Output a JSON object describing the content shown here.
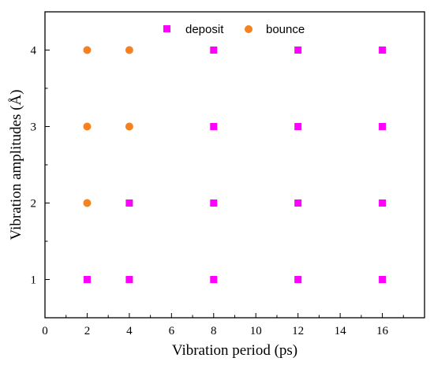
{
  "chart_data": {
    "type": "scatter",
    "xlabel": "Vibration period (ps)",
    "ylabel": "Vibration amplitudes (Å)",
    "xlim": [
      0,
      18
    ],
    "ylim": [
      0.5,
      4.5
    ],
    "xticks": [
      0,
      2,
      4,
      6,
      8,
      10,
      12,
      14,
      16
    ],
    "yticks": [
      1,
      2,
      3,
      4
    ],
    "grid": false,
    "legend_position": "top-center",
    "series": [
      {
        "name": "deposit",
        "marker": "square",
        "color": "#ff00ff",
        "points": [
          [
            2,
            1
          ],
          [
            4,
            1
          ],
          [
            8,
            1
          ],
          [
            12,
            1
          ],
          [
            16,
            1
          ],
          [
            4,
            2
          ],
          [
            8,
            2
          ],
          [
            12,
            2
          ],
          [
            16,
            2
          ],
          [
            8,
            3
          ],
          [
            12,
            3
          ],
          [
            16,
            3
          ],
          [
            8,
            4
          ],
          [
            12,
            4
          ],
          [
            16,
            4
          ]
        ]
      },
      {
        "name": "bounce",
        "marker": "circle",
        "color": "#f5821f",
        "points": [
          [
            2,
            2
          ],
          [
            2,
            3
          ],
          [
            4,
            3
          ],
          [
            2,
            4
          ],
          [
            4,
            4
          ]
        ]
      }
    ]
  }
}
